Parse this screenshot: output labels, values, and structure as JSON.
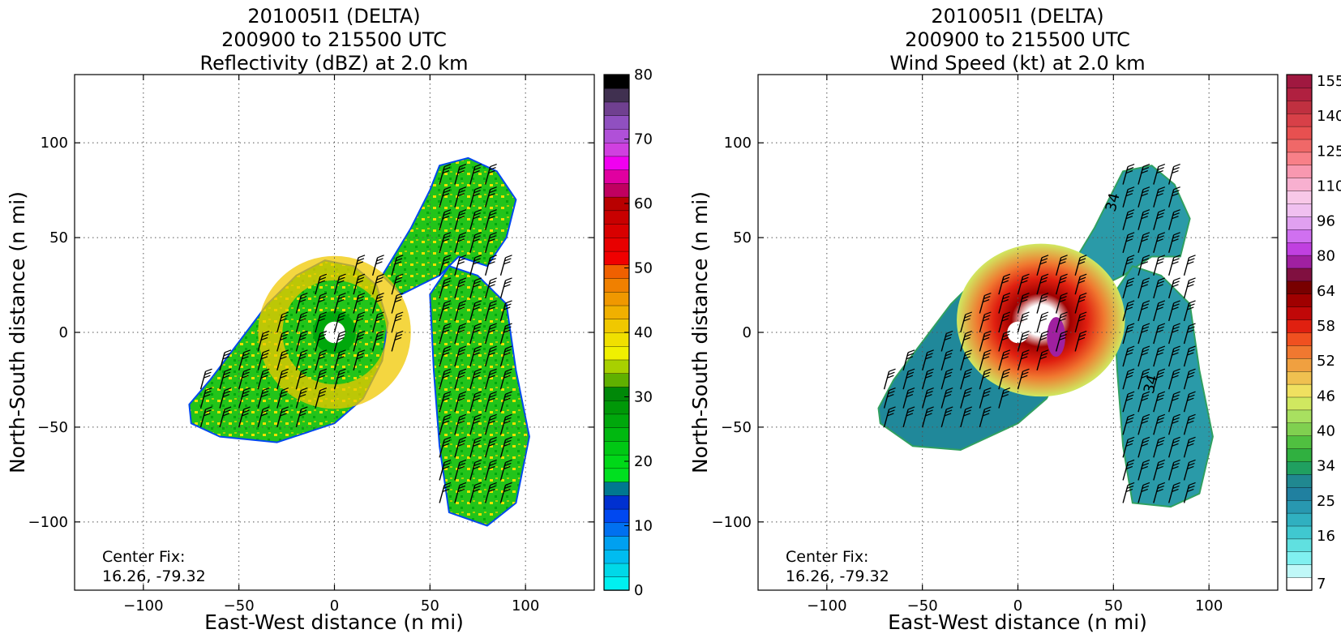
{
  "chart_data": [
    {
      "type": "heatmap",
      "title_lines": [
        "201005I1 (DELTA)",
        "200900 to 215500 UTC",
        "Reflectivity (dBZ) at 2.0 km"
      ],
      "xlabel": "East-West distance (n mi)",
      "ylabel": "North-South distance (n mi)",
      "xlim": [
        -136,
        136
      ],
      "ylim": [
        -136,
        136
      ],
      "xticks": [
        -100,
        -50,
        0,
        50,
        100
      ],
      "yticks": [
        -100,
        -50,
        0,
        50,
        100
      ],
      "xtick_labels": [
        "−100",
        "−50",
        "0",
        "50",
        "100"
      ],
      "ytick_labels": [
        "−100",
        "−50",
        "0",
        "50",
        "100"
      ],
      "grid": true,
      "annotation": [
        "Center Fix:",
        "16.26, -79.32"
      ],
      "colorbar": {
        "vmin": 0,
        "vmax": 80,
        "ticks": [
          0,
          10,
          20,
          30,
          40,
          50,
          60,
          70,
          80
        ],
        "tick_labels": [
          "0",
          "10",
          "20",
          "30",
          "40",
          "50",
          "60",
          "70",
          "80"
        ],
        "colors": [
          "#00f0f0",
          "#00d8e8",
          "#00bcf0",
          "#00a0f0",
          "#0070f0",
          "#0048f0",
          "#0030d0",
          "#007890",
          "#00e020",
          "#00d818",
          "#00c814",
          "#00b810",
          "#00a80c",
          "#009808",
          "#008808",
          "#60b000",
          "#a8d000",
          "#f0f000",
          "#f0e000",
          "#f0c800",
          "#f0b000",
          "#f09800",
          "#f08000",
          "#f06000",
          "#f00000",
          "#e80000",
          "#d80000",
          "#c80000",
          "#b80000",
          "#c00060",
          "#e000a0",
          "#f000f0",
          "#d040e0",
          "#b050d8",
          "#9050c0",
          "#704090",
          "#403050",
          "#000000"
        ]
      },
      "features": {
        "regions": [
          {
            "name": "western-band",
            "polygon": [
              [
                -75,
                -48
              ],
              [
                -60,
                -55
              ],
              [
                -30,
                -58
              ],
              [
                0,
                -48
              ],
              [
                15,
                -35
              ],
              [
                25,
                -15
              ],
              [
                28,
                5
              ],
              [
                22,
                25
              ],
              [
                10,
                35
              ],
              [
                -5,
                38
              ],
              [
                -20,
                30
              ],
              [
                -35,
                15
              ],
              [
                -50,
                -5
              ],
              [
                -65,
                -25
              ],
              [
                -76,
                -38
              ]
            ]
          },
          {
            "name": "northern-arm",
            "polygon": [
              [
                25,
                30
              ],
              [
                40,
                55
              ],
              [
                50,
                75
              ],
              [
                55,
                88
              ],
              [
                70,
                92
              ],
              [
                85,
                85
              ],
              [
                95,
                70
              ],
              [
                90,
                50
              ],
              [
                80,
                35
              ],
              [
                65,
                40
              ],
              [
                55,
                30
              ],
              [
                45,
                25
              ],
              [
                35,
                20
              ]
            ]
          },
          {
            "name": "eastern-band",
            "polygon": [
              [
                50,
                20
              ],
              [
                60,
                35
              ],
              [
                75,
                30
              ],
              [
                90,
                15
              ],
              [
                95,
                -20
              ],
              [
                102,
                -55
              ],
              [
                95,
                -90
              ],
              [
                80,
                -102
              ],
              [
                60,
                -95
              ],
              [
                55,
                -60
              ],
              [
                52,
                -20
              ]
            ]
          }
        ],
        "eye_center": [
          0,
          0
        ],
        "eye_radius": 8
      }
    },
    {
      "type": "heatmap",
      "title_lines": [
        "201005I1 (DELTA)",
        "200900 to 215500 UTC",
        "Wind Speed (kt) at 2.0 km"
      ],
      "xlabel": "East-West distance (n mi)",
      "ylabel": "North-South distance (n mi)",
      "xlim": [
        -136,
        136
      ],
      "ylim": [
        -136,
        136
      ],
      "xticks": [
        -100,
        -50,
        0,
        50,
        100
      ],
      "yticks": [
        -100,
        -50,
        0,
        50,
        100
      ],
      "xtick_labels": [
        "−100",
        "−50",
        "0",
        "50",
        "100"
      ],
      "ytick_labels": [
        "−100",
        "−50",
        "0",
        "50",
        "100"
      ],
      "grid": true,
      "annotation": [
        "Center Fix:",
        "16.26, -79.32"
      ],
      "contour_labels": [
        {
          "text": "34",
          "x": 52,
          "y": 68
        },
        {
          "text": "34",
          "x": 72,
          "y": -28
        }
      ],
      "colorbar": {
        "ticks_text": [
          "7",
          "16",
          "25",
          "34",
          "40",
          "46",
          "52",
          "58",
          "64",
          "80",
          "96",
          "110",
          "125",
          "140",
          "155"
        ],
        "colors": [
          "#ffffff",
          "#c0f8f8",
          "#80f0f0",
          "#60e0e0",
          "#40c8d0",
          "#30b0c0",
          "#2898b0",
          "#2080a0",
          "#208890",
          "#20a060",
          "#30b040",
          "#50c040",
          "#80d050",
          "#a8e060",
          "#d0e860",
          "#f0e060",
          "#f0c050",
          "#f0a040",
          "#f07830",
          "#f05020",
          "#e02010",
          "#c00808",
          "#a00000",
          "#780000",
          "#801040",
          "#a020a0",
          "#c040e0",
          "#d070f0",
          "#e0a0f0",
          "#f0c0f0",
          "#f8c8e8",
          "#f8b0d0",
          "#f898b0",
          "#f88088",
          "#f06868",
          "#e85050",
          "#d84048",
          "#c03040",
          "#b02040",
          "#a01840"
        ]
      },
      "features": {
        "regions": [
          {
            "name": "western-band",
            "polygon": [
              [
                -72,
                -48
              ],
              [
                -55,
                -60
              ],
              [
                -30,
                -62
              ],
              [
                0,
                -48
              ],
              [
                15,
                -35
              ],
              [
                25,
                -15
              ],
              [
                28,
                5
              ],
              [
                22,
                25
              ],
              [
                10,
                35
              ],
              [
                -5,
                38
              ],
              [
                -20,
                30
              ],
              [
                -35,
                15
              ],
              [
                -50,
                -5
              ],
              [
                -65,
                -25
              ],
              [
                -73,
                -40
              ]
            ]
          },
          {
            "name": "northern-arm",
            "polygon": [
              [
                25,
                30
              ],
              [
                40,
                55
              ],
              [
                50,
                75
              ],
              [
                55,
                85
              ],
              [
                70,
                88
              ],
              [
                82,
                78
              ],
              [
                90,
                60
              ],
              [
                85,
                40
              ],
              [
                70,
                40
              ],
              [
                55,
                30
              ],
              [
                45,
                25
              ],
              [
                35,
                20
              ]
            ]
          },
          {
            "name": "eastern-band",
            "polygon": [
              [
                50,
                20
              ],
              [
                60,
                35
              ],
              [
                75,
                30
              ],
              [
                90,
                15
              ],
              [
                95,
                -20
              ],
              [
                102,
                -55
              ],
              [
                95,
                -85
              ],
              [
                80,
                -92
              ],
              [
                60,
                -90
              ],
              [
                55,
                -60
              ],
              [
                52,
                -20
              ]
            ]
          }
        ],
        "eye_center": [
          0,
          0
        ],
        "eye_radius": 8
      }
    }
  ]
}
